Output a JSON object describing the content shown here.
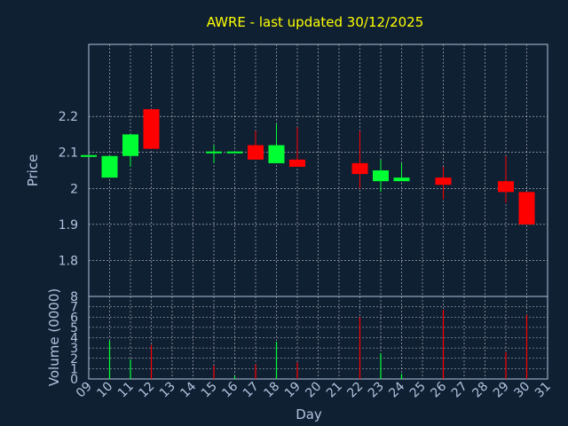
{
  "colors": {
    "background": "#102033",
    "title": "#ffff00",
    "axis_text": "#b0c4de",
    "frame": "#b0c4de",
    "grid": "#ffffff",
    "up": "#00ff33",
    "down": "#ff0000"
  },
  "chart_data": [
    {
      "type": "candlestick",
      "title": "AWRE - last updated 30/12/2025",
      "xlabel": "",
      "ylabel": "Price",
      "ylim": [
        1.7,
        2.4
      ],
      "yticks": [
        1.8,
        1.9,
        2,
        2.1,
        2.2
      ],
      "grid": true,
      "legend": "none",
      "x_ticks": [
        "09",
        "10",
        "11",
        "12",
        "13",
        "14",
        "15",
        "16",
        "17",
        "18",
        "19",
        "20",
        "21",
        "22",
        "23",
        "24",
        "25",
        "26",
        "27",
        "28",
        "29",
        "30",
        "31"
      ],
      "candles": [
        {
          "day": "09",
          "open": 2.09,
          "close": 2.09,
          "high": 2.09,
          "low": 2.09
        },
        {
          "day": "10",
          "open": 2.03,
          "close": 2.09,
          "high": 2.09,
          "low": 2.03
        },
        {
          "day": "11",
          "open": 2.09,
          "close": 2.15,
          "high": 2.15,
          "low": 2.06
        },
        {
          "day": "12",
          "open": 2.22,
          "close": 2.11,
          "high": 2.22,
          "low": 2.11
        },
        {
          "day": "15",
          "open": 2.1,
          "close": 2.1,
          "high": 2.12,
          "low": 2.07
        },
        {
          "day": "16",
          "open": 2.1,
          "close": 2.1,
          "high": 2.1,
          "low": 2.1
        },
        {
          "day": "17",
          "open": 2.12,
          "close": 2.08,
          "high": 2.16,
          "low": 2.08
        },
        {
          "day": "18",
          "open": 2.07,
          "close": 2.12,
          "high": 2.18,
          "low": 2.07
        },
        {
          "day": "19",
          "open": 2.08,
          "close": 2.06,
          "high": 2.17,
          "low": 2.06
        },
        {
          "day": "22",
          "open": 2.07,
          "close": 2.04,
          "high": 2.16,
          "low": 2.0
        },
        {
          "day": "23",
          "open": 2.02,
          "close": 2.05,
          "high": 2.08,
          "low": 1.99
        },
        {
          "day": "24",
          "open": 2.02,
          "close": 2.03,
          "high": 2.07,
          "low": 2.02
        },
        {
          "day": "26",
          "open": 2.03,
          "close": 2.01,
          "high": 2.06,
          "low": 1.97
        },
        {
          "day": "29",
          "open": 2.02,
          "close": 1.99,
          "high": 2.09,
          "low": 1.96
        },
        {
          "day": "30",
          "open": 1.99,
          "close": 1.9,
          "high": 1.99,
          "low": 1.9
        }
      ]
    },
    {
      "type": "bar",
      "title": "",
      "xlabel": "Day",
      "ylabel": "Volume (0000)",
      "ylim": [
        0,
        8
      ],
      "yticks": [
        0,
        1,
        2,
        3,
        4,
        5,
        6,
        7,
        8
      ],
      "grid": true,
      "legend": "none",
      "x_ticks": [
        "09",
        "10",
        "11",
        "12",
        "13",
        "14",
        "15",
        "16",
        "17",
        "18",
        "19",
        "20",
        "21",
        "22",
        "23",
        "24",
        "25",
        "26",
        "27",
        "28",
        "29",
        "30",
        "31"
      ],
      "bars": [
        {
          "day": "10",
          "value": 3.7,
          "dir": "up"
        },
        {
          "day": "11",
          "value": 1.9,
          "dir": "up"
        },
        {
          "day": "12",
          "value": 3.3,
          "dir": "down"
        },
        {
          "day": "15",
          "value": 1.3,
          "dir": "down"
        },
        {
          "day": "16",
          "value": 0.3,
          "dir": "up"
        },
        {
          "day": "17",
          "value": 1.4,
          "dir": "down"
        },
        {
          "day": "18",
          "value": 3.6,
          "dir": "up"
        },
        {
          "day": "19",
          "value": 1.6,
          "dir": "down"
        },
        {
          "day": "22",
          "value": 6.0,
          "dir": "down"
        },
        {
          "day": "23",
          "value": 2.5,
          "dir": "up"
        },
        {
          "day": "24",
          "value": 0.5,
          "dir": "up"
        },
        {
          "day": "26",
          "value": 6.7,
          "dir": "down"
        },
        {
          "day": "29",
          "value": 2.6,
          "dir": "down"
        },
        {
          "day": "30",
          "value": 6.2,
          "dir": "down"
        }
      ]
    }
  ]
}
